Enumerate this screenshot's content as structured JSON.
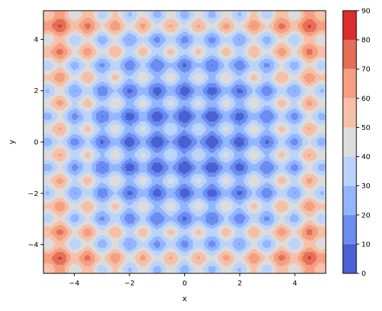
{
  "chart_data": {
    "type": "heatmap",
    "subtype": "filled-contour",
    "function": "Rastrigin: 20 + x^2 - 10cos(2*pi*x) + y^2 - 10cos(2*pi*y)",
    "xlabel": "x",
    "ylabel": "y",
    "xlim": [
      -5.12,
      5.12
    ],
    "ylim": [
      -5.12,
      5.12
    ],
    "xticks": [
      -4,
      -2,
      0,
      2,
      4
    ],
    "yticks": [
      -4,
      -2,
      0,
      2,
      4
    ],
    "xtick_labels": [
      "−4",
      "−2",
      "0",
      "2",
      "4"
    ],
    "ytick_labels": [
      "−4",
      "−2",
      "0",
      "2",
      "4"
    ],
    "levels": [
      0,
      10,
      20,
      30,
      40,
      50,
      60,
      70,
      80,
      90
    ],
    "colorbar_labels": [
      "0",
      "10",
      "20",
      "30",
      "40",
      "50",
      "60",
      "70",
      "80",
      "90"
    ],
    "colorbar_location": "right",
    "colormap": "coolwarm",
    "band_colors": [
      "#4961d2",
      "#6b8df0",
      "#93b5fe",
      "#bbd3fa",
      "#dddcdc",
      "#f6c0a8",
      "#f59f80",
      "#e46e56",
      "#d92e2d"
    ],
    "grid": false
  }
}
